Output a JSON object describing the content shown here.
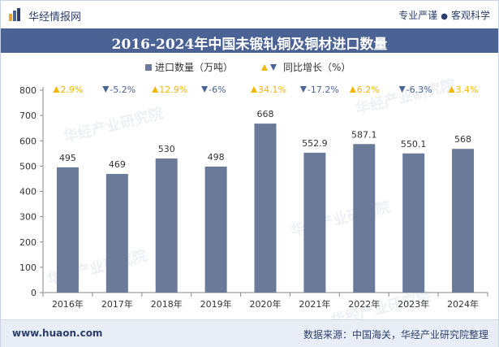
{
  "header": {
    "brand": "华经情报网",
    "tag1": "专业严谨",
    "tag2": "客观科学"
  },
  "colors": {
    "bar": "#6b7a99",
    "title_bg": "#4a6294",
    "up": "#f2b705",
    "down": "#4a6294",
    "growth_text": "#4a6294"
  },
  "chart_data": {
    "type": "bar",
    "title": "2016-2024年中国未锻轧铜及铜材进口数量",
    "categories": [
      "2016年",
      "2017年",
      "2018年",
      "2019年",
      "2020年",
      "2021年",
      "2022年",
      "2023年",
      "2024年"
    ],
    "series": [
      {
        "name": "进口数量（万吨）",
        "values": [
          495,
          469,
          530,
          498,
          668,
          552.9,
          587.1,
          550.1,
          568
        ]
      },
      {
        "name": "同比增长（%）",
        "values": [
          "2.9%",
          "-5.2%",
          "12.9%",
          "-6%",
          "34.1%",
          "-17.2%",
          "6.2%",
          "-6.3%",
          "3.4%"
        ]
      }
    ],
    "growth_direction": [
      "up",
      "down",
      "up",
      "down",
      "up",
      "down",
      "up",
      "down",
      "up"
    ],
    "value_labels": [
      "495",
      "469",
      "530",
      "498",
      "668",
      "552.9",
      "587.1",
      "550.1",
      "568"
    ],
    "yticks": [
      "0",
      "100",
      "200",
      "300",
      "400",
      "500",
      "600",
      "700",
      "800"
    ],
    "ylim": [
      0,
      800
    ],
    "legend_position": "top-center",
    "grid": false
  },
  "watermark": "华经产业研究院",
  "footer": {
    "url": "www.huaon.com",
    "source": "数据来源：中国海关，华经产业研究院整理"
  }
}
